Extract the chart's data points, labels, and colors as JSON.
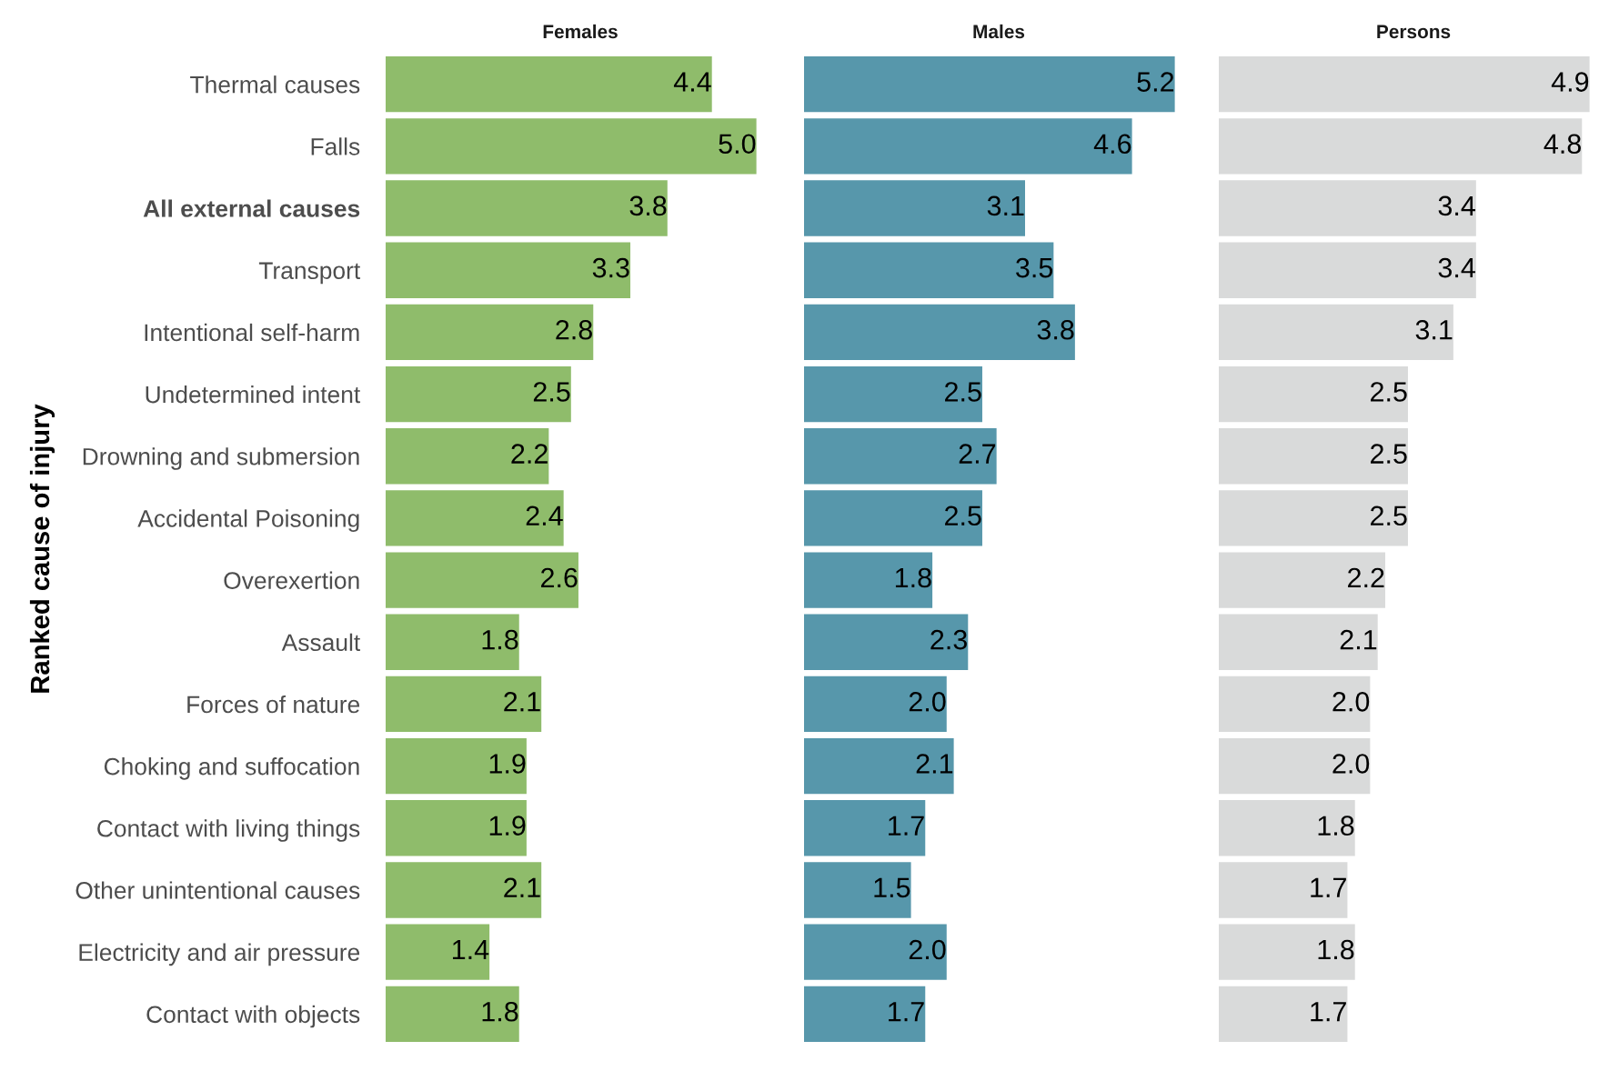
{
  "chart_data": [
    {
      "type": "bar",
      "orientation": "horizontal",
      "title": "Females",
      "ylabel": "Ranked cause of injury",
      "tick_labels": "y",
      "color": "#8fbc6b",
      "categories": [
        "Thermal causes",
        "Falls",
        "All external causes",
        "Transport",
        "Intentional self-harm",
        "Undetermined intent",
        "Drowning and submersion",
        "Accidental Poisoning",
        "Overexertion",
        "Assault",
        "Forces of nature",
        "Choking and suffocation",
        "Contact with living things",
        "Other unintentional causes",
        "Electricity and air pressure",
        "Contact with objects"
      ],
      "values": [
        4.4,
        5.0,
        3.8,
        3.3,
        2.8,
        2.5,
        2.2,
        2.4,
        2.6,
        1.8,
        2.1,
        1.9,
        1.9,
        2.1,
        1.4,
        1.8
      ],
      "value_labels": [
        "4.4",
        "5.0",
        "3.8",
        "3.3",
        "2.8",
        "2.5",
        "2.2",
        "2.4",
        "2.6",
        "1.8",
        "2.1",
        "1.9",
        "1.9",
        "2.1",
        "1.4",
        "1.8"
      ]
    },
    {
      "type": "bar",
      "orientation": "horizontal",
      "title": "Males",
      "tick_labels": false,
      "color": "#5797ab",
      "categories": [
        "Thermal causes",
        "Falls",
        "All external causes",
        "Transport",
        "Intentional self-harm",
        "Undetermined intent",
        "Drowning and submersion",
        "Accidental Poisoning",
        "Overexertion",
        "Assault",
        "Forces of nature",
        "Choking and suffocation",
        "Contact with living things",
        "Other unintentional causes",
        "Electricity and air pressure",
        "Contact with objects"
      ],
      "values": [
        5.2,
        4.6,
        3.1,
        3.5,
        3.8,
        2.5,
        2.7,
        2.5,
        1.8,
        2.3,
        2.0,
        2.1,
        1.7,
        1.5,
        2.0,
        1.7
      ],
      "value_labels": [
        "5.2",
        "4.6",
        "3.1",
        "3.5",
        "3.8",
        "2.5",
        "2.7",
        "2.5",
        "1.8",
        "2.3",
        "2.0",
        "2.1",
        "1.7",
        "1.5",
        "2.0",
        "1.7"
      ]
    },
    {
      "type": "bar",
      "orientation": "horizontal",
      "title": "Persons",
      "tick_labels": false,
      "color": "#d9dada",
      "categories": [
        "Thermal causes",
        "Falls",
        "All external causes",
        "Transport",
        "Intentional self-harm",
        "Undetermined intent",
        "Drowning and submersion",
        "Accidental Poisoning",
        "Overexertion",
        "Assault",
        "Forces of nature",
        "Choking and suffocation",
        "Contact with living things",
        "Other unintentional causes",
        "Electricity and air pressure",
        "Contact with objects"
      ],
      "values": [
        4.9,
        4.8,
        3.4,
        3.4,
        3.1,
        2.5,
        2.5,
        2.5,
        2.2,
        2.1,
        2.0,
        2.0,
        1.8,
        1.7,
        1.8,
        1.7
      ],
      "value_labels": [
        "4.9",
        "4.8",
        "3.4",
        "3.4",
        "3.1",
        "2.5",
        "2.5",
        "2.5",
        "2.2",
        "2.1",
        "2.0",
        "2.0",
        "1.8",
        "1.7",
        "1.8",
        "1.7"
      ]
    }
  ]
}
